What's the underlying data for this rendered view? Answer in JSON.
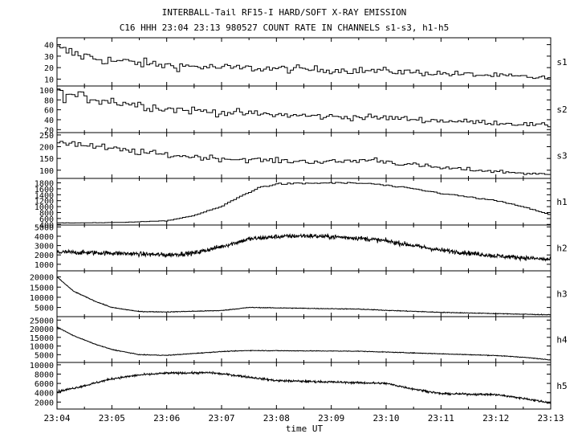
{
  "title_line1": "INTERBALL-Tail RF15-I HARD/SOFT X-RAY EMISSION",
  "title_line2": "C16 HHH 23:04 23:13 980527  COUNT RATE IN CHANNELS s1-s3, h1-h5",
  "chart_data": {
    "type": "line",
    "xlabel": "time UT",
    "x_tick_labels": [
      "23:04",
      "23:05",
      "23:06",
      "23:07",
      "23:08",
      "23:09",
      "23:10",
      "23:11",
      "23:12",
      "23:13"
    ],
    "x_range_minutes": [
      0,
      9
    ],
    "panels": [
      {
        "label": "s1",
        "style": "step",
        "bins": 165,
        "noise": 0.18,
        "yticks": [
          10,
          20,
          30,
          40
        ],
        "ytick_labels": [
          "10",
          "20",
          "30",
          "40"
        ],
        "ylim": [
          4,
          46
        ],
        "x": [
          0,
          0.5,
          1,
          2,
          3,
          4,
          5,
          6,
          7,
          8,
          9
        ],
        "y": [
          36,
          30,
          26,
          22,
          20,
          19,
          18,
          17,
          15,
          13,
          11
        ]
      },
      {
        "label": "s2",
        "style": "step",
        "bins": 165,
        "noise": 0.14,
        "yticks": [
          20,
          40,
          60,
          80,
          100
        ],
        "ytick_labels": [
          "20",
          "40",
          "60",
          "80",
          "100"
        ],
        "ylim": [
          14,
          108
        ],
        "x": [
          0,
          1,
          2,
          3,
          4,
          5,
          6,
          7,
          8,
          9
        ],
        "y": [
          92,
          78,
          62,
          55,
          50,
          46,
          44,
          38,
          34,
          28
        ]
      },
      {
        "label": "s3",
        "style": "step",
        "bins": 165,
        "noise": 0.08,
        "yticks": [
          100,
          150,
          200,
          250
        ],
        "ytick_labels": [
          "100",
          "150",
          "200",
          "250"
        ],
        "ylim": [
          65,
          260
        ],
        "x": [
          0,
          1,
          2,
          3,
          4,
          5,
          5.8,
          6.2,
          7,
          8,
          9
        ],
        "y": [
          225,
          190,
          165,
          150,
          140,
          135,
          145,
          130,
          110,
          95,
          80
        ]
      },
      {
        "label": "h1",
        "style": "step",
        "bins": 165,
        "noise": 0.015,
        "yticks": [
          400,
          600,
          800,
          1000,
          1200,
          1400,
          1600,
          1800
        ],
        "ytick_labels": [
          "400",
          "600",
          "800",
          "1000",
          "1200",
          "1400",
          "1600",
          "1800"
        ],
        "ylim": [
          380,
          1950
        ],
        "x": [
          0,
          1,
          2,
          2.5,
          3,
          3.3,
          3.7,
          4,
          5,
          5.7,
          6.5,
          7,
          8,
          8.5,
          9
        ],
        "y": [
          450,
          460,
          520,
          700,
          1000,
          1300,
          1650,
          1760,
          1800,
          1780,
          1600,
          1450,
          1200,
          1000,
          720
        ]
      },
      {
        "label": "h2",
        "style": "dense",
        "points": 1200,
        "noise": 250,
        "yticks": [
          1000,
          2000,
          3000,
          4000,
          5000
        ],
        "ytick_labels": [
          "1000",
          "2000",
          "3000",
          "4000",
          "5000"
        ],
        "ylim": [
          300,
          5200
        ],
        "x": [
          0,
          1,
          2,
          2.5,
          3,
          3.5,
          4,
          4.5,
          5,
          5.5,
          6,
          7,
          8,
          9
        ],
        "y": [
          2300,
          2200,
          2000,
          2200,
          2900,
          3700,
          3950,
          4050,
          3950,
          3800,
          3500,
          2500,
          1900,
          1500
        ]
      },
      {
        "label": "h3",
        "style": "dense",
        "points": 1200,
        "noise": 180,
        "yticks": [
          5000,
          10000,
          15000,
          20000
        ],
        "ytick_labels": [
          "5000",
          "10000",
          "15000",
          "20000"
        ],
        "ylim": [
          500,
          23000
        ],
        "x": [
          0,
          0.3,
          0.7,
          1,
          1.5,
          2,
          3,
          3.5,
          4.5,
          5.5,
          6,
          7,
          8,
          9
        ],
        "y": [
          20000,
          13000,
          8000,
          5000,
          3000,
          2800,
          3500,
          5000,
          4600,
          4200,
          3600,
          2600,
          2000,
          1400
        ]
      },
      {
        "label": "h4",
        "style": "dense",
        "points": 1200,
        "noise": 200,
        "yticks": [
          5000,
          10000,
          15000,
          20000,
          25000
        ],
        "ytick_labels": [
          "5000",
          "10000",
          "15000",
          "20000",
          "25000"
        ],
        "ylim": [
          500,
          27000
        ],
        "x": [
          0,
          0.3,
          0.7,
          1,
          1.5,
          2,
          3,
          3.5,
          4.5,
          5.5,
          6,
          7,
          8,
          8.5,
          9
        ],
        "y": [
          21000,
          16000,
          11000,
          8000,
          5000,
          4600,
          6800,
          7400,
          7200,
          7000,
          6500,
          5500,
          4500,
          3500,
          2000
        ]
      },
      {
        "label": "h5",
        "style": "dense",
        "points": 1200,
        "noise": 220,
        "yticks": [
          2000,
          4000,
          6000,
          8000,
          10000
        ],
        "ytick_labels": [
          "2000",
          "4000",
          "6000",
          "8000",
          "10000"
        ],
        "ylim": [
          500,
          10500
        ],
        "x": [
          0,
          0.5,
          1,
          1.5,
          2,
          2.8,
          3.2,
          4,
          5,
          6,
          6.5,
          7,
          7.5,
          8,
          8.5,
          9
        ],
        "y": [
          4200,
          5500,
          7000,
          7800,
          8200,
          8300,
          7800,
          6600,
          6300,
          6000,
          4800,
          3800,
          3700,
          3600,
          2800,
          1800
        ]
      }
    ]
  }
}
